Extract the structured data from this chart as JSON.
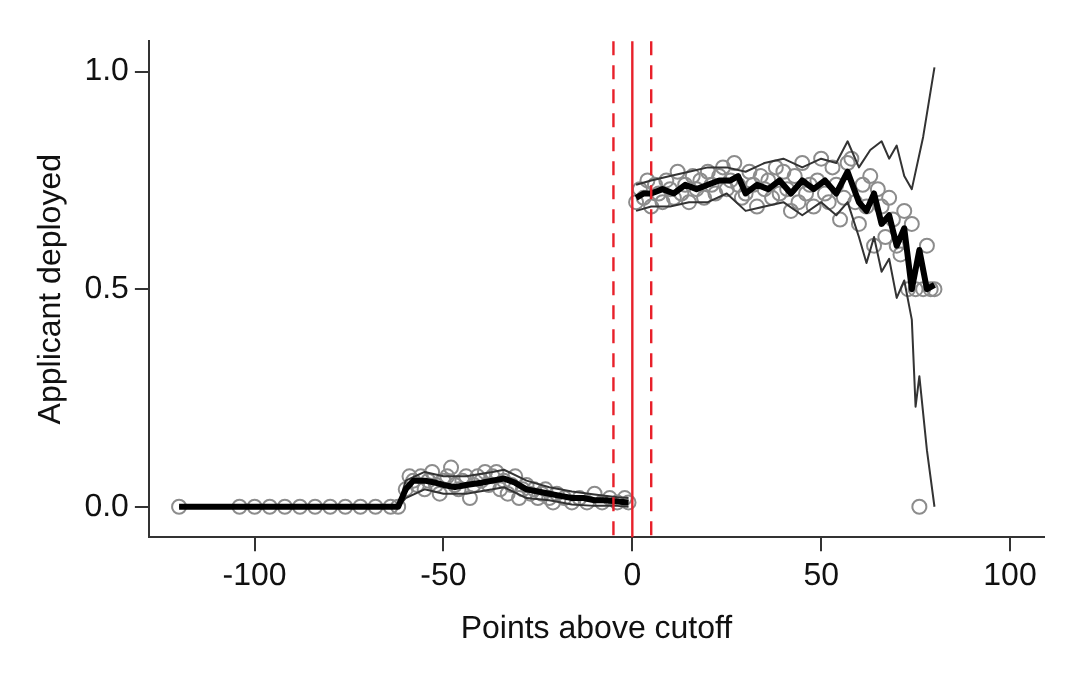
{
  "chart_data": {
    "type": "scatter",
    "xlabel": "Points above cutoff",
    "ylabel": "Applicant deployed",
    "xlim": [
      -128,
      109
    ],
    "xticks": [
      -100,
      -50,
      0,
      50,
      100
    ],
    "ylim": [
      -0.07,
      1.07
    ],
    "yticks": [
      {
        "value": 0,
        "label": "0.0"
      },
      {
        "value": 0.5,
        "label": "0.5"
      },
      {
        "value": 1,
        "label": "1.0"
      }
    ],
    "ref_lines": [
      {
        "axis": "x",
        "value": 0,
        "color": "#e8202a",
        "line_style": "solid"
      },
      {
        "axis": "x",
        "value": -5,
        "color": "#e8202a",
        "line_style": "dashed"
      },
      {
        "axis": "x",
        "value": 5,
        "color": "#e8202a",
        "line_style": "dashed"
      }
    ],
    "series": [
      {
        "marker": "circle",
        "color": "#8c8c8c",
        "x": [
          -120,
          -104,
          -100,
          -96,
          -92,
          -88,
          -84,
          -80,
          -76,
          -72,
          -68,
          -64,
          -62,
          -60,
          -59,
          -58,
          -57,
          -56,
          -55,
          -54,
          -53,
          -52,
          -51,
          -50,
          -49,
          -48,
          -47,
          -46,
          -45,
          -44,
          -43,
          -42,
          -41,
          -40,
          -39,
          -38,
          -37,
          -36,
          -35,
          -34,
          -33,
          -32,
          -31,
          -30,
          -29,
          -28,
          -27,
          -26,
          -25,
          -24,
          -23,
          -22,
          -21,
          -20,
          -18,
          -16,
          -14,
          -12,
          -10,
          -8,
          -6,
          -4,
          -2,
          -1,
          1,
          2,
          3,
          4,
          5,
          6,
          7,
          8,
          9,
          10,
          11,
          12,
          13,
          14,
          15,
          16,
          17,
          18,
          19,
          20,
          21,
          22,
          23,
          24,
          25,
          26,
          27,
          28,
          29,
          30,
          31,
          32,
          33,
          34,
          35,
          36,
          37,
          38,
          39,
          40,
          41,
          42,
          43,
          44,
          45,
          46,
          47,
          48,
          49,
          50,
          51,
          52,
          53,
          54,
          55,
          56,
          57,
          58,
          59,
          60,
          61,
          62,
          63,
          64,
          65,
          66,
          67,
          68,
          69,
          70,
          71,
          72,
          73,
          74,
          75,
          76,
          77,
          78,
          79,
          80
        ],
        "values": [
          0,
          0,
          0,
          0,
          0,
          0,
          0,
          0,
          0,
          0,
          0,
          0,
          0,
          0.04,
          0.07,
          0.06,
          0.05,
          0.07,
          0.04,
          0.06,
          0.08,
          0.05,
          0.03,
          0.06,
          0.07,
          0.09,
          0.05,
          0.04,
          0.06,
          0.07,
          0.02,
          0.05,
          0.07,
          0.06,
          0.08,
          0.05,
          0.07,
          0.08,
          0.04,
          0.06,
          0.03,
          0.05,
          0.07,
          0.02,
          0.04,
          0.05,
          0.03,
          0.04,
          0.02,
          0.03,
          0.04,
          0.02,
          0.01,
          0.03,
          0.02,
          0.01,
          0.02,
          0.01,
          0.03,
          0.01,
          0.02,
          0.01,
          0.02,
          0.01,
          0.7,
          0.73,
          0.71,
          0.75,
          0.69,
          0.74,
          0.72,
          0.7,
          0.75,
          0.73,
          0.71,
          0.77,
          0.72,
          0.74,
          0.7,
          0.76,
          0.73,
          0.75,
          0.71,
          0.77,
          0.74,
          0.72,
          0.76,
          0.78,
          0.73,
          0.75,
          0.79,
          0.74,
          0.71,
          0.72,
          0.77,
          0.74,
          0.69,
          0.76,
          0.73,
          0.75,
          0.71,
          0.78,
          0.72,
          0.77,
          0.73,
          0.68,
          0.76,
          0.7,
          0.79,
          0.72,
          0.74,
          0.69,
          0.75,
          0.8,
          0.72,
          0.7,
          0.78,
          0.74,
          0.66,
          0.71,
          0.79,
          0.8,
          0.7,
          0.65,
          0.74,
          0.69,
          0.76,
          0.6,
          0.73,
          0.69,
          0.62,
          0.71,
          0.66,
          0.6,
          0.58,
          0.68,
          0.5,
          0.65,
          0.5,
          0.0,
          0.5,
          0.6,
          0.5,
          0.5
        ]
      },
      {
        "type": "line",
        "marker": "none",
        "color": "#000000",
        "x": [
          -120,
          -110,
          -100,
          -90,
          -80,
          -70,
          -62,
          -60,
          -58,
          -55,
          -52,
          -50,
          -47,
          -44,
          -40,
          -37,
          -34,
          -31,
          -28,
          -25,
          -22,
          -19,
          -16,
          -13,
          -10,
          -7,
          -4,
          -1,
          0,
          1,
          3,
          5,
          8,
          11,
          14,
          17,
          20,
          23,
          26,
          28,
          30,
          33,
          36,
          39,
          42,
          45,
          48,
          51,
          54,
          57,
          60,
          62,
          64,
          66,
          68,
          70,
          72,
          74,
          76,
          78,
          80
        ],
        "values": [
          0,
          0,
          0,
          0,
          0,
          0,
          0,
          0.04,
          0.06,
          0.06,
          0.055,
          0.05,
          0.045,
          0.05,
          0.055,
          0.06,
          0.065,
          0.055,
          0.04,
          0.035,
          0.03,
          0.025,
          0.02,
          0.02,
          0.015,
          0.015,
          0.012,
          0.01,
          null,
          0.71,
          0.72,
          0.72,
          0.73,
          0.72,
          0.74,
          0.73,
          0.74,
          0.75,
          0.75,
          0.76,
          0.72,
          0.74,
          0.73,
          0.75,
          0.72,
          0.75,
          0.73,
          0.75,
          0.72,
          0.77,
          0.7,
          0.68,
          0.72,
          0.65,
          0.67,
          0.6,
          0.64,
          0.5,
          0.59,
          0.5,
          0.51
        ]
      },
      {
        "type": "line",
        "marker": "none",
        "color": "#333333",
        "x": [
          -120,
          -62,
          -60,
          -55,
          -50,
          -44,
          -37,
          -34,
          -28,
          -22,
          -16,
          -10,
          -4,
          -1,
          0,
          1,
          5,
          10,
          15,
          20,
          25,
          30,
          35,
          40,
          45,
          50,
          54,
          57,
          60,
          63,
          66,
          68,
          70,
          72,
          74,
          77,
          80
        ],
        "values": [
          0,
          0,
          0.06,
          0.08,
          0.07,
          0.07,
          0.08,
          0.085,
          0.06,
          0.045,
          0.035,
          0.028,
          0.022,
          0.02,
          null,
          0.74,
          0.75,
          0.76,
          0.77,
          0.78,
          0.78,
          0.77,
          0.79,
          0.8,
          0.78,
          0.8,
          0.79,
          0.84,
          0.78,
          0.82,
          0.84,
          0.8,
          0.83,
          0.76,
          0.73,
          0.85,
          1.01
        ]
      },
      {
        "type": "line",
        "marker": "none",
        "color": "#333333",
        "x": [
          -120,
          -62,
          -60,
          -55,
          -50,
          -44,
          -37,
          -34,
          -28,
          -22,
          -16,
          -10,
          -4,
          -1,
          0,
          1,
          5,
          10,
          15,
          20,
          25,
          30,
          35,
          40,
          45,
          50,
          54,
          57,
          60,
          62,
          64,
          66,
          68,
          70,
          72,
          74,
          75,
          76,
          78,
          80
        ],
        "values": [
          0,
          0,
          0.02,
          0.04,
          0.03,
          0.03,
          0.04,
          0.045,
          0.02,
          0.015,
          0.005,
          0.002,
          0.002,
          0.0,
          null,
          0.68,
          0.69,
          0.69,
          0.7,
          0.7,
          0.72,
          0.68,
          0.69,
          0.7,
          0.67,
          0.7,
          0.67,
          0.7,
          0.62,
          0.56,
          0.62,
          0.54,
          0.57,
          0.48,
          0.52,
          0.43,
          0.23,
          0.3,
          0.13,
          0.0
        ]
      }
    ]
  }
}
